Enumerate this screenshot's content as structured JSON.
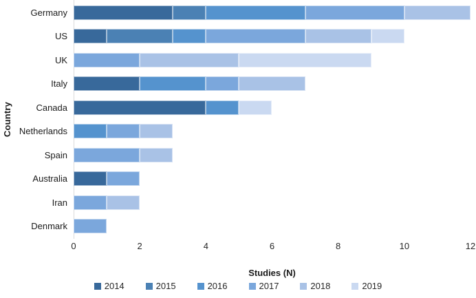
{
  "chart_data": {
    "type": "bar",
    "orientation": "horizontal",
    "stacked": true,
    "title": "",
    "xlabel": "Studies (N)",
    "ylabel": "Country",
    "xlim": [
      0,
      12
    ],
    "xticks": [
      0,
      2,
      4,
      6,
      8,
      10,
      12
    ],
    "grid": false,
    "legend_position": "bottom",
    "axis_line_color": "#d9d9d9",
    "categories": [
      "Germany",
      "US",
      "UK",
      "Italy",
      "Canada",
      "Netherlands",
      "Spain",
      "Australia",
      "Iran",
      "Denmark"
    ],
    "series": [
      {
        "name": "2014",
        "color": "#38699b",
        "values": [
          3,
          1,
          0,
          2,
          4,
          0,
          0,
          1,
          0,
          0
        ]
      },
      {
        "name": "2015",
        "color": "#4b81b4",
        "values": [
          1,
          2,
          0,
          0,
          0,
          0,
          0,
          0,
          0,
          0
        ]
      },
      {
        "name": "2016",
        "color": "#5593ce",
        "values": [
          3,
          1,
          0,
          2,
          1,
          1,
          0,
          0,
          0,
          0
        ]
      },
      {
        "name": "2017",
        "color": "#7ba7dc",
        "values": [
          3,
          3,
          2,
          1,
          0,
          1,
          2,
          1,
          1,
          1
        ]
      },
      {
        "name": "2018",
        "color": "#a9c2e6",
        "values": [
          2,
          2,
          3,
          2,
          0,
          1,
          1,
          0,
          1,
          0
        ]
      },
      {
        "name": "2019",
        "color": "#cad9f1",
        "values": [
          0,
          1,
          4,
          0,
          1,
          0,
          0,
          0,
          0,
          0
        ]
      }
    ],
    "totals": [
      12,
      10,
      9,
      7,
      6,
      3,
      3,
      2,
      2,
      1
    ]
  }
}
